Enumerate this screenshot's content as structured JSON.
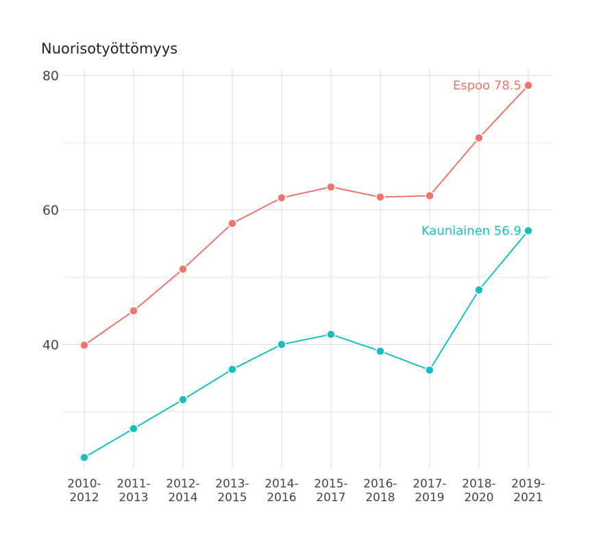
{
  "chart_data": {
    "type": "line",
    "title": "Nuorisotyöttömyys",
    "xlabel": "",
    "ylabel": "",
    "categories": [
      [
        "2010-",
        "2012"
      ],
      [
        "2011-",
        "2013"
      ],
      [
        "2012-",
        "2014"
      ],
      [
        "2013-",
        "2015"
      ],
      [
        "2014-",
        "2016"
      ],
      [
        "2015-",
        "2017"
      ],
      [
        "2016-",
        "2018"
      ],
      [
        "2017-",
        "2019"
      ],
      [
        "2018-",
        "2020"
      ],
      [
        "2019-",
        "2021"
      ]
    ],
    "y_ticks": [
      "40",
      "60",
      "80"
    ],
    "ylim": [
      21.5,
      81
    ],
    "grid": true,
    "series": [
      {
        "name": "Espoo",
        "color": "#f0746b",
        "values": [
          39.9,
          45.0,
          51.2,
          58.0,
          61.8,
          63.4,
          61.9,
          62.1,
          70.7,
          78.5
        ],
        "end_label": "Espoo 78.5"
      },
      {
        "name": "Kauniainen",
        "color": "#17bec0",
        "values": [
          23.2,
          27.5,
          31.8,
          36.3,
          40.0,
          41.5,
          39.0,
          36.2,
          48.1,
          56.9
        ],
        "end_label": "Kauniainen 56.9"
      }
    ]
  }
}
